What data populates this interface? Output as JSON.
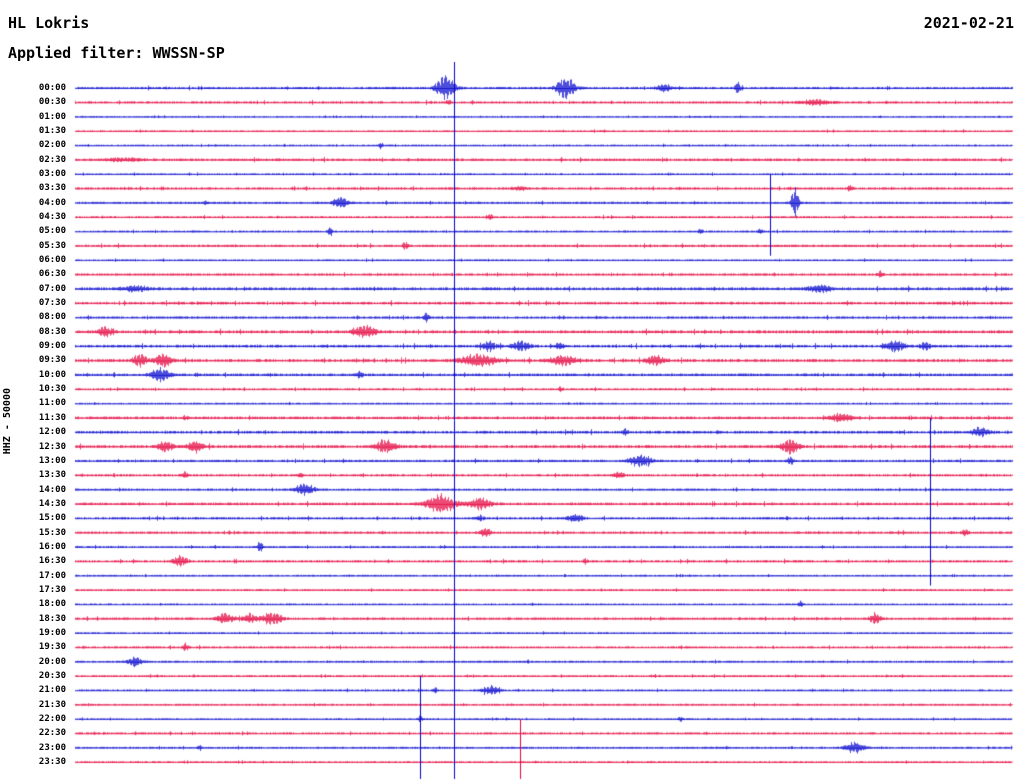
{
  "header": {
    "station": "HL Lokris",
    "date": "2021-02-21",
    "filter": "Applied filter: WWSSN-SP"
  },
  "chart_data": {
    "type": "line",
    "title": "HL Lokris helicorder seismogram, 2021-02-21, WWSSN-SP filter",
    "ylabel": "HHZ - 50000",
    "row_interval_minutes": 30,
    "trace_colors_alternate": [
      "blue",
      "red"
    ],
    "colors": {
      "blue": "#0000cd",
      "red": "#e4003c"
    },
    "rows": [
      {
        "t": "00:00",
        "c": "blue",
        "n": 1.0,
        "e": [
          [
            0.395,
            13,
            5
          ],
          [
            0.523,
            11,
            5
          ],
          [
            0.628,
            4,
            4
          ],
          [
            0.707,
            7,
            1.5
          ]
        ]
      },
      {
        "t": "00:30",
        "c": "red",
        "n": 1.0,
        "e": [
          [
            0.398,
            3,
            1.5
          ],
          [
            0.79,
            2.5,
            8
          ]
        ]
      },
      {
        "t": "01:00",
        "c": "blue",
        "n": 0.6,
        "e": []
      },
      {
        "t": "01:30",
        "c": "red",
        "n": 0.7,
        "e": []
      },
      {
        "t": "02:00",
        "c": "blue",
        "n": 0.7,
        "e": [
          [
            0.326,
            3,
            1.2
          ]
        ]
      },
      {
        "t": "02:30",
        "c": "red",
        "n": 1.1,
        "e": [
          [
            0.05,
            2,
            10
          ]
        ]
      },
      {
        "t": "03:00",
        "c": "blue",
        "n": 0.7,
        "e": []
      },
      {
        "t": "03:30",
        "c": "red",
        "n": 1.0,
        "e": [
          [
            0.827,
            3,
            1.5
          ],
          [
            0.475,
            2,
            4
          ]
        ]
      },
      {
        "t": "04:00",
        "c": "blue",
        "n": 0.9,
        "e": [
          [
            0.283,
            6,
            4
          ],
          [
            0.768,
            15,
            2
          ],
          [
            0.139,
            2,
            1.5
          ]
        ]
      },
      {
        "t": "04:30",
        "c": "red",
        "n": 0.9,
        "e": [
          [
            0.443,
            3.5,
            1.2
          ]
        ]
      },
      {
        "t": "05:00",
        "c": "blue",
        "n": 0.8,
        "e": [
          [
            0.272,
            5,
            1.2
          ],
          [
            0.667,
            3,
            1.2
          ],
          [
            0.731,
            3,
            1.2
          ]
        ]
      },
      {
        "t": "05:30",
        "c": "red",
        "n": 1.0,
        "e": [
          [
            0.352,
            4,
            1.5
          ]
        ]
      },
      {
        "t": "06:00",
        "c": "blue",
        "n": 0.7,
        "e": []
      },
      {
        "t": "06:30",
        "c": "red",
        "n": 1.0,
        "e": [
          [
            0.859,
            4,
            1.5
          ]
        ]
      },
      {
        "t": "07:00",
        "c": "blue",
        "n": 1.3,
        "e": [
          [
            0.064,
            3,
            7
          ],
          [
            0.795,
            4,
            6
          ]
        ]
      },
      {
        "t": "07:30",
        "c": "red",
        "n": 1.2,
        "e": []
      },
      {
        "t": "08:00",
        "c": "blue",
        "n": 1.0,
        "e": [
          [
            0.374,
            5,
            1.5
          ]
        ]
      },
      {
        "t": "08:30",
        "c": "red",
        "n": 1.3,
        "e": [
          [
            0.032,
            5,
            4
          ],
          [
            0.309,
            6,
            6
          ]
        ]
      },
      {
        "t": "09:00",
        "c": "blue",
        "n": 1.2,
        "e": [
          [
            0.441,
            5,
            4
          ],
          [
            0.475,
            5,
            5
          ],
          [
            0.517,
            3,
            3
          ],
          [
            0.875,
            6,
            5
          ],
          [
            0.907,
            4,
            3
          ]
        ]
      },
      {
        "t": "09:30",
        "c": "red",
        "n": 1.3,
        "e": [
          [
            0.069,
            6,
            4
          ],
          [
            0.094,
            8,
            4
          ],
          [
            0.43,
            6,
            10
          ],
          [
            0.52,
            5,
            7
          ],
          [
            0.619,
            5,
            5
          ]
        ]
      },
      {
        "t": "10:00",
        "c": "blue",
        "n": 1.2,
        "e": [
          [
            0.091,
            7,
            5
          ],
          [
            0.304,
            4,
            1.5
          ]
        ]
      },
      {
        "t": "10:30",
        "c": "red",
        "n": 0.9,
        "e": [
          [
            0.518,
            3,
            1.2
          ]
        ]
      },
      {
        "t": "11:00",
        "c": "blue",
        "n": 0.7,
        "e": []
      },
      {
        "t": "11:30",
        "c": "red",
        "n": 1.2,
        "e": [
          [
            0.816,
            4,
            6
          ],
          [
            0.117,
            2,
            2
          ]
        ]
      },
      {
        "t": "12:00",
        "c": "blue",
        "n": 1.2,
        "e": [
          [
            0.966,
            5,
            5
          ],
          [
            0.587,
            3,
            1.5
          ]
        ]
      },
      {
        "t": "12:30",
        "c": "red",
        "n": 1.3,
        "e": [
          [
            0.096,
            6,
            4
          ],
          [
            0.128,
            6,
            4
          ],
          [
            0.331,
            7,
            5
          ],
          [
            0.763,
            9,
            4
          ]
        ]
      },
      {
        "t": "13:00",
        "c": "blue",
        "n": 1.0,
        "e": [
          [
            0.603,
            6,
            6
          ],
          [
            0.763,
            4,
            2
          ]
        ]
      },
      {
        "t": "13:30",
        "c": "red",
        "n": 1.0,
        "e": [
          [
            0.117,
            4,
            1.5
          ],
          [
            0.24,
            3,
            1.5
          ],
          [
            0.58,
            3,
            3
          ]
        ]
      },
      {
        "t": "14:00",
        "c": "blue",
        "n": 0.9,
        "e": [
          [
            0.245,
            6,
            5
          ]
        ]
      },
      {
        "t": "14:30",
        "c": "red",
        "n": 1.2,
        "e": [
          [
            0.39,
            9,
            8
          ],
          [
            0.432,
            6,
            6
          ]
        ]
      },
      {
        "t": "15:00",
        "c": "blue",
        "n": 1.0,
        "e": [
          [
            0.534,
            4,
            4
          ],
          [
            0.432,
            3,
            2
          ]
        ]
      },
      {
        "t": "15:30",
        "c": "red",
        "n": 1.0,
        "e": [
          [
            0.437,
            4,
            3
          ],
          [
            0.95,
            3,
            2
          ]
        ]
      },
      {
        "t": "16:00",
        "c": "blue",
        "n": 0.8,
        "e": [
          [
            0.197,
            7,
            1.2
          ]
        ]
      },
      {
        "t": "16:30",
        "c": "red",
        "n": 1.0,
        "e": [
          [
            0.112,
            5,
            4
          ],
          [
            0.544,
            3,
            1.2
          ]
        ]
      },
      {
        "t": "17:00",
        "c": "blue",
        "n": 0.7,
        "e": []
      },
      {
        "t": "17:30",
        "c": "red",
        "n": 0.8,
        "e": []
      },
      {
        "t": "18:00",
        "c": "blue",
        "n": 0.7,
        "e": [
          [
            0.774,
            3,
            1.2
          ]
        ]
      },
      {
        "t": "18:30",
        "c": "red",
        "n": 1.0,
        "e": [
          [
            0.16,
            5,
            5
          ],
          [
            0.187,
            5,
            4
          ],
          [
            0.21,
            7,
            5
          ],
          [
            0.854,
            6,
            3
          ]
        ]
      },
      {
        "t": "19:00",
        "c": "blue",
        "n": 0.7,
        "e": []
      },
      {
        "t": "19:30",
        "c": "red",
        "n": 0.9,
        "e": [
          [
            0.117,
            5,
            1.5
          ]
        ]
      },
      {
        "t": "20:00",
        "c": "blue",
        "n": 0.8,
        "e": [
          [
            0.064,
            5,
            4
          ]
        ]
      },
      {
        "t": "20:30",
        "c": "red",
        "n": 0.8,
        "e": []
      },
      {
        "t": "21:00",
        "c": "blue",
        "n": 0.8,
        "e": [
          [
            0.443,
            4,
            5
          ],
          [
            0.384,
            3,
            1.2
          ]
        ]
      },
      {
        "t": "21:30",
        "c": "red",
        "n": 0.8,
        "e": []
      },
      {
        "t": "22:00",
        "c": "blue",
        "n": 0.7,
        "e": [
          [
            0.368,
            4,
            1.2
          ],
          [
            0.646,
            3,
            1.2
          ]
        ]
      },
      {
        "t": "22:30",
        "c": "red",
        "n": 0.9,
        "e": []
      },
      {
        "t": "23:00",
        "c": "blue",
        "n": 0.8,
        "e": [
          [
            0.832,
            6,
            5
          ],
          [
            0.133,
            3,
            1.2
          ]
        ]
      },
      {
        "t": "23:30",
        "c": "red",
        "n": 0.8,
        "e": []
      }
    ],
    "vertical_lines": [
      {
        "f": 0.405,
        "color": "blue",
        "from": 0,
        "to": 47
      },
      {
        "f": 0.912,
        "color": "blue",
        "from": 24,
        "to": 34
      },
      {
        "f": 0.742,
        "color": "blue",
        "from": 7,
        "to": 11
      },
      {
        "f": 0.475,
        "color": "red",
        "from": 45,
        "to": 47
      },
      {
        "f": 0.368,
        "color": "blue",
        "from": 42,
        "to": 47
      }
    ]
  }
}
